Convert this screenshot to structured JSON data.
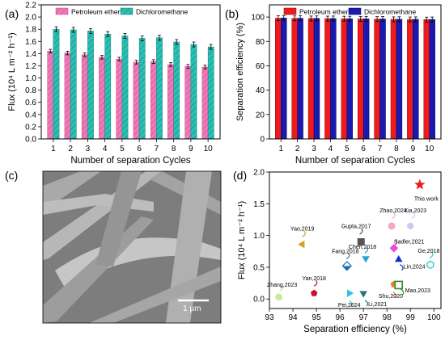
{
  "panels": {
    "a": "(a)",
    "b": "(b)",
    "c": "(c)",
    "d": "(d)"
  },
  "colors": {
    "petroleum": "#f07ab7",
    "petroleum_hatch": "#c94f8e",
    "dcm": "#2bc0b4",
    "dcm_hatch": "#13887f",
    "red": "#ef1b1b",
    "blue": "#1a1ab0"
  },
  "sem": {
    "scale_label": "1 μm",
    "description_icon": "sem-micrograph-fibers"
  },
  "chart_data": [
    {
      "id": "a",
      "type": "bar",
      "xlabel": "Number of separation Cycles",
      "ylabel": "Flux (10⁴ L m⁻² h⁻¹)",
      "categories": [
        "1",
        "2",
        "3",
        "4",
        "5",
        "6",
        "7",
        "8",
        "9",
        "10"
      ],
      "ylim": [
        0.0,
        2.2
      ],
      "yticks": [
        "0.0",
        "0.2",
        "0.4",
        "0.6",
        "0.8",
        "1.0",
        "1.2",
        "1.4",
        "1.6",
        "1.8",
        "2.0",
        "2.2"
      ],
      "legend_position": "top",
      "series": [
        {
          "name": "Petroleum ether",
          "values": [
            1.44,
            1.41,
            1.38,
            1.34,
            1.31,
            1.26,
            1.27,
            1.22,
            1.19,
            1.18
          ],
          "error": [
            0.03,
            0.03,
            0.03,
            0.03,
            0.03,
            0.03,
            0.03,
            0.03,
            0.03,
            0.03
          ]
        },
        {
          "name": "Dichloromethane",
          "values": [
            1.8,
            1.79,
            1.77,
            1.72,
            1.69,
            1.65,
            1.66,
            1.59,
            1.55,
            1.51
          ],
          "error": [
            0.04,
            0.04,
            0.04,
            0.04,
            0.04,
            0.04,
            0.04,
            0.04,
            0.04,
            0.04
          ]
        }
      ]
    },
    {
      "id": "b",
      "type": "bar",
      "xlabel": "Number of separation Cycles",
      "ylabel": "Separation efficiency (%)",
      "categories": [
        "1",
        "2",
        "3",
        "4",
        "5",
        "6",
        "7",
        "8",
        "9",
        "10"
      ],
      "ylim": [
        0,
        110
      ],
      "yticks": [
        "0",
        "20",
        "40",
        "60",
        "80",
        "100"
      ],
      "legend_position": "top",
      "series": [
        {
          "name": "Petroleum ether",
          "values": [
            99.0,
            98.9,
            98.8,
            98.7,
            98.6,
            98.4,
            98.3,
            98.1,
            98.0,
            97.9
          ],
          "error": [
            2,
            2,
            2,
            2,
            2,
            2,
            2,
            2,
            2,
            2
          ]
        },
        {
          "name": "Dichloromethane",
          "values": [
            99.2,
            99.0,
            98.9,
            98.8,
            98.6,
            98.5,
            98.4,
            98.2,
            98.1,
            98.0
          ],
          "error": [
            2,
            2,
            2,
            2,
            2,
            2,
            2,
            2,
            2,
            2
          ]
        }
      ]
    },
    {
      "id": "d",
      "type": "scatter",
      "xlabel": "Separation efficiency (%)",
      "ylabel": "Flux (10⁴ L m⁻² h⁻¹)",
      "xlim": [
        93,
        100.3
      ],
      "ylim": [
        -0.15,
        2.0
      ],
      "xticks": [
        "93",
        "94",
        "95",
        "96",
        "97",
        "98",
        "99",
        "100"
      ],
      "yticks": [
        "0.0",
        "0.5",
        "1.0",
        "1.5",
        "2.0"
      ],
      "points": [
        {
          "label": "This work",
          "x": 99.4,
          "y": 1.8,
          "marker": "star",
          "color": "#ef1b1b"
        },
        {
          "label": "Yao,2019",
          "x": 94.4,
          "y": 0.86,
          "marker": "tri-left",
          "color": "#d9a01f"
        },
        {
          "label": "Gupta,2017",
          "x": 96.9,
          "y": 0.9,
          "marker": "square",
          "color": "#555555"
        },
        {
          "label": "Zhao,2024",
          "x": 98.2,
          "y": 1.15,
          "marker": "circle",
          "color": "#f4a6c8"
        },
        {
          "label": "Xia,2023",
          "x": 99.0,
          "y": 1.15,
          "marker": "hexagon",
          "color": "#c9c9f0"
        },
        {
          "label": "Sadler,2021",
          "x": 98.3,
          "y": 0.8,
          "marker": "diamond",
          "color": "#e84de0"
        },
        {
          "label": "Chen,2018",
          "x": 97.1,
          "y": 0.64,
          "marker": "tri-down",
          "color": "#2aa0d8"
        },
        {
          "label": "Ge,2018",
          "x": 99.85,
          "y": 0.54,
          "marker": "hexagon-open",
          "color": "#36c9d6"
        },
        {
          "label": "Fang,2018",
          "x": 96.3,
          "y": 0.52,
          "marker": "diamond-half",
          "color": "#1f6fb0"
        },
        {
          "label": "Lin,2024",
          "x": 98.5,
          "y": 0.62,
          "marker": "tri-up",
          "color": "#1230c9"
        },
        {
          "label": "Yan,2018",
          "x": 94.9,
          "y": 0.09,
          "marker": "pentagon",
          "color": "#c8102e"
        },
        {
          "label": "Zhang,2023",
          "x": 93.4,
          "y": 0.03,
          "marker": "circle",
          "color": "#c4ef9c"
        },
        {
          "label": "Pei,2024",
          "x": 96.4,
          "y": 0.09,
          "marker": "tri-right",
          "color": "#28c7d8"
        },
        {
          "label": "Li,2021",
          "x": 97.0,
          "y": 0.09,
          "marker": "tri-down",
          "color": "#1e7a7a"
        },
        {
          "label": "Shu,2020",
          "x": 98.3,
          "y": 0.23,
          "marker": "pentagon",
          "color": "#f07c1a"
        },
        {
          "label": "Mao,2023",
          "x": 98.5,
          "y": 0.22,
          "marker": "square-open",
          "color": "#2e8b2e"
        }
      ]
    }
  ]
}
